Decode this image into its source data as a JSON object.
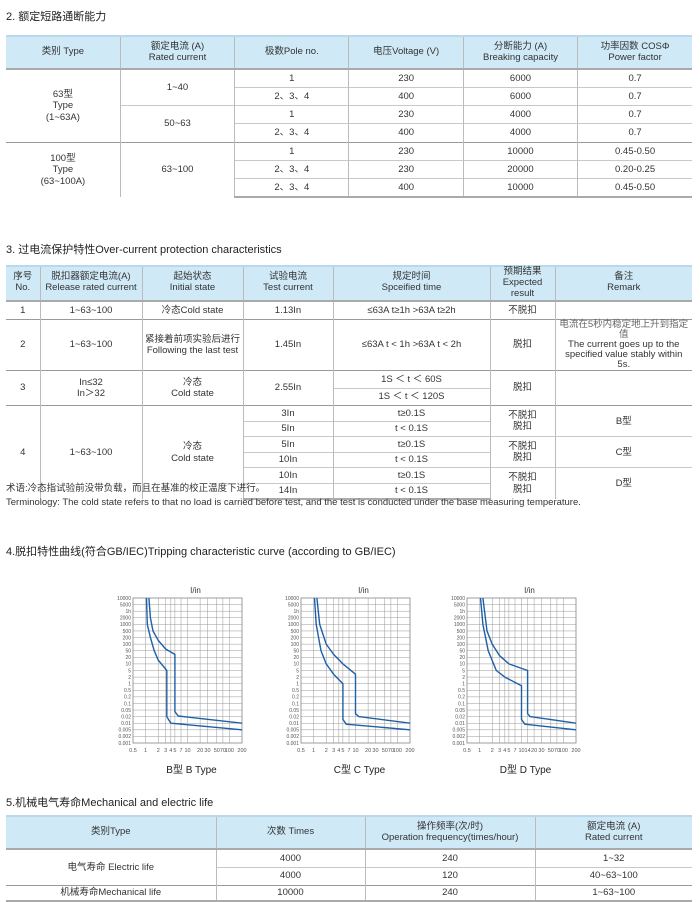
{
  "section2": {
    "title": "2. 额定短路通断能力",
    "headers": [
      [
        "类别 Type",
        ""
      ],
      [
        "额定电流 (A)",
        "Rated current"
      ],
      [
        "极数Pole no.",
        ""
      ],
      [
        "电压Voltage  (V)",
        ""
      ],
      [
        "分断能力 (A)",
        "Breaking capacity"
      ],
      [
        "功率因数 COSΦ",
        "Power factor"
      ]
    ],
    "groups": [
      {
        "type": [
          "63型",
          "Type",
          "(1~63A)"
        ],
        "rated": [
          "1~40",
          "50~63"
        ],
        "rows": [
          [
            "1",
            "230",
            "6000",
            "0.7"
          ],
          [
            "2、3、4",
            "400",
            "6000",
            "0.7"
          ],
          [
            "1",
            "230",
            "4000",
            "0.7"
          ],
          [
            "2、3、4",
            "400",
            "4000",
            "0.7"
          ]
        ]
      },
      {
        "type": [
          "100型",
          "Type",
          "(63~100A)"
        ],
        "rated": [
          "63~100"
        ],
        "rows": [
          [
            "1",
            "230",
            "10000",
            "0.45-0.50"
          ],
          [
            "2、3、4",
            "230",
            "20000",
            "0.20-0.25"
          ],
          [
            "2、3、4",
            "400",
            "10000",
            "0.45-0.50"
          ]
        ]
      }
    ]
  },
  "section3": {
    "title": "3. 过电流保护特性Over-current protection characteristics",
    "headers": [
      [
        "序号",
        "No."
      ],
      [
        "脱扣器额定电流(A)",
        "Release rated current"
      ],
      [
        "起始状态",
        "Initial state"
      ],
      [
        "试验电流",
        "Test current"
      ],
      [
        "规定时间",
        "Spceified time"
      ],
      [
        "预期结果",
        "Expected",
        "result"
      ],
      [
        "备注",
        "Remark"
      ]
    ],
    "rows": [
      {
        "no": "1",
        "release": "1~63~100",
        "state": [
          "冷态Cold state"
        ],
        "test": "1.13In",
        "time": "≤63A t≥1h   >63A t≥2h",
        "result": "不脱扣",
        "remark": []
      },
      {
        "no": "2",
        "release": "1~63~100",
        "state": [
          "紧接着前项实验后进行",
          "Following the last test"
        ],
        "test": "1.45In",
        "time": "≤63A t < 1h   >63A t < 2h",
        "result": "脱扣",
        "remark": [
          "电流在5秒内稳定地上升到指定值",
          "The current goes up to the",
          "specified value stably within 5s."
        ]
      },
      {
        "no": "3",
        "release": [
          "In≤32",
          "In＞32"
        ],
        "state": [
          "冷态",
          "Cold state"
        ],
        "test": "2.55In",
        "times": [
          "1S ＜ t ＜ 60S",
          "1S ＜ t ＜ 120S"
        ],
        "result": "脱扣"
      },
      {
        "no": "4",
        "release": "1~63~100",
        "state": [
          "冷态",
          "Cold state"
        ],
        "tests": [
          "3In",
          "5In",
          "5In",
          "10In",
          "10In",
          "14In"
        ],
        "times": [
          "t≥0.1S",
          "t < 0.1S",
          "t≥0.1S",
          "t < 0.1S",
          "t≥0.1S",
          "t < 0.1S"
        ],
        "results": [
          "不脱扣",
          "脱扣"
        ],
        "remarks": [
          "B型",
          "C型",
          "D型"
        ]
      }
    ],
    "note_cn": "术语:冷态指试验前没带负载，而且在基准的校正温度下进行。",
    "note_en": "Terminology: The cold state refers to that no load is carried before test, and the test is conducted under the base measuring temperature."
  },
  "section4": {
    "title": "4.脱扣特性曲线(符合GB/IEC)Tripping characteristic curve (according to GB/IEC)"
  },
  "chart_data": [
    {
      "type": "line",
      "title": "I/in",
      "caption": "B型  B Type",
      "xscale": "log",
      "xlim": [
        0.5,
        200
      ],
      "xticks": [
        "0.5",
        "1",
        "2",
        "3",
        "4",
        "5",
        "7",
        "10",
        "20",
        "30",
        "50",
        "70",
        "100",
        "200"
      ],
      "yticks": [
        "10000",
        "5000",
        "1h",
        "2000",
        "1000",
        "500",
        "200",
        "100",
        "50",
        "20",
        "10",
        "5",
        "2",
        "1",
        "0.5",
        "0.2",
        "0.1",
        "0.05",
        "0.02",
        "0.01",
        "0.005",
        "0.002",
        "0.001"
      ],
      "grid": true,
      "color": "#1f5fa6",
      "series": [
        {
          "points": [
            [
              1.2,
              10000
            ],
            [
              1.3,
              2000
            ],
            [
              1.5,
              500
            ],
            [
              2,
              150
            ],
            [
              3,
              60
            ],
            [
              5,
              30
            ],
            [
              5,
              0.04
            ],
            [
              6,
              0.022
            ],
            [
              10,
              0.019
            ],
            [
              200,
              0.01
            ]
          ]
        },
        {
          "points": [
            [
              1.05,
              10000
            ],
            [
              1.1,
              1000
            ],
            [
              1.3,
              200
            ],
            [
              1.6,
              50
            ],
            [
              2,
              15
            ],
            [
              3.2,
              5
            ],
            [
              3.2,
              0.02
            ],
            [
              4,
              0.01
            ],
            [
              200,
              0.005
            ]
          ]
        }
      ]
    },
    {
      "type": "line",
      "title": "I/in",
      "caption": "C型  C Type",
      "xscale": "log",
      "xlim": [
        0.5,
        200
      ],
      "xticks": [
        "0.5",
        "1",
        "2",
        "3",
        "4",
        "5",
        "7",
        "10",
        "20",
        "30",
        "50",
        "70",
        "100",
        "200"
      ],
      "yticks": [
        "10000",
        "5000",
        "1h",
        "2000",
        "1000",
        "500",
        "200",
        "100",
        "50",
        "20",
        "10",
        "5",
        "2",
        "1",
        "0.5",
        "0.2",
        "0.1",
        "0.05",
        "0.02",
        "0.01",
        "0.005",
        "0.002",
        "0.001"
      ],
      "grid": true,
      "color": "#1f5fa6",
      "series": [
        {
          "points": [
            [
              1.2,
              10000
            ],
            [
              1.4,
              1000
            ],
            [
              2,
              100
            ],
            [
              3,
              30
            ],
            [
              5,
              10
            ],
            [
              10,
              3
            ],
            [
              10,
              0.03
            ],
            [
              12,
              0.02
            ],
            [
              200,
              0.01
            ]
          ]
        },
        {
          "points": [
            [
              1.05,
              10000
            ],
            [
              1.15,
              1000
            ],
            [
              1.5,
              50
            ],
            [
              2,
              10
            ],
            [
              3,
              3
            ],
            [
              5,
              1
            ],
            [
              5,
              0.015
            ],
            [
              6,
              0.009
            ],
            [
              200,
              0.005
            ]
          ]
        }
      ]
    },
    {
      "type": "line",
      "title": "I/in",
      "caption": "D型  D Type",
      "xscale": "log",
      "xlim": [
        0.5,
        200
      ],
      "xticks": [
        "0.5",
        "1",
        "2",
        "3",
        "4",
        "5",
        "7",
        "10",
        "14",
        "20",
        "30",
        "50",
        "70",
        "100",
        "200"
      ],
      "yticks": [
        "10000",
        "5000",
        "1h",
        "2000",
        "1000",
        "500",
        "200",
        "100",
        "50",
        "20",
        "10",
        "5",
        "2",
        "1",
        "0.5",
        "0.2",
        "0.1",
        "0.05",
        "0.02",
        "0.01",
        "0.005",
        "0.002",
        "0.001"
      ],
      "grid": true,
      "color": "#1f5fa6",
      "series": [
        {
          "points": [
            [
              1.2,
              10000
            ],
            [
              1.5,
              500
            ],
            [
              2,
              100
            ],
            [
              3,
              25
            ],
            [
              5,
              10
            ],
            [
              14,
              5
            ],
            [
              14,
              0.03
            ],
            [
              16,
              0.02
            ],
            [
              200,
              0.01
            ]
          ]
        },
        {
          "points": [
            [
              1.05,
              10000
            ],
            [
              1.2,
              1000
            ],
            [
              1.6,
              50
            ],
            [
              2.5,
              5
            ],
            [
              4,
              2
            ],
            [
              10,
              0.8
            ],
            [
              10,
              0.015
            ],
            [
              12,
              0.009
            ],
            [
              200,
              0.005
            ]
          ]
        }
      ]
    }
  ],
  "section5": {
    "title": "5.机械电气寿命Mechanical and electric life",
    "headers": [
      [
        "类别Type",
        ""
      ],
      [
        "次数 Times",
        ""
      ],
      [
        "操作频率(次/时)",
        "Operation frequency(times/hour)"
      ],
      [
        "额定电流 (A)",
        "Rated current"
      ]
    ],
    "electric": "电气寿命  Electric life",
    "mechanical": "机械寿命Mechanical life",
    "rows": [
      [
        "4000",
        "240",
        "1~32"
      ],
      [
        "4000",
        "120",
        "40~63~100"
      ],
      [
        "10000",
        "240",
        "1~63~100"
      ]
    ]
  }
}
